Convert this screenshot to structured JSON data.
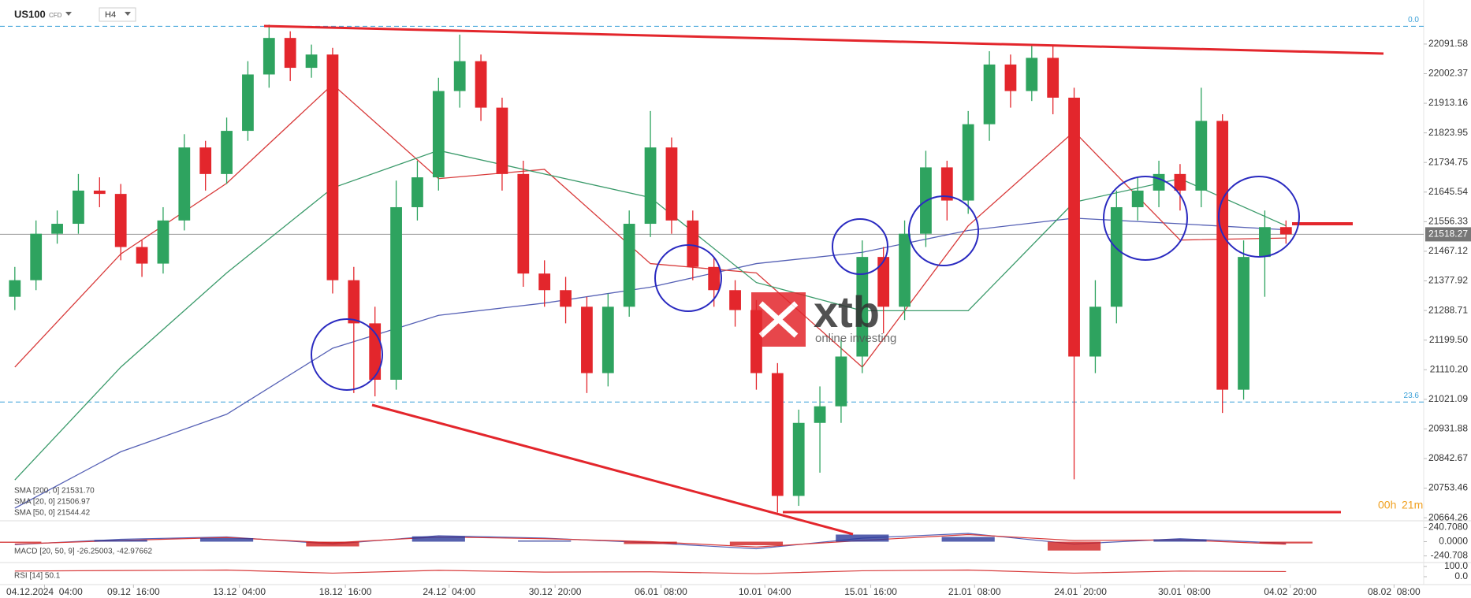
{
  "chart_data": {
    "type": "candlestick",
    "symbol": "US100",
    "instrument_type": "CFD",
    "timeframe": "H4",
    "up_color": "#2ea35f",
    "down_color": "#e3262c",
    "open": [
      21330,
      21380,
      21520,
      21550,
      21650,
      21640,
      21480,
      21430,
      21560,
      21780,
      21700,
      21830,
      22000,
      22110,
      22020,
      22060,
      21380,
      21250,
      21080,
      21600,
      21690,
      21950,
      22040,
      21900,
      21700,
      21400,
      21350,
      21300,
      21100,
      21300,
      21550,
      21780,
      21560,
      21420,
      21350,
      21290,
      21100,
      20730,
      20950,
      21000,
      21150,
      21450,
      21300,
      21520,
      21720,
      21620,
      21850,
      22030,
      21950,
      22050,
      21930,
      21150,
      21300,
      21600,
      21650,
      21700,
      21650,
      21860,
      21050,
      21450,
      21540
    ],
    "high": [
      21420,
      21560,
      21590,
      21700,
      21690,
      21670,
      21500,
      21600,
      21820,
      21800,
      21870,
      22040,
      22150,
      22130,
      22090,
      22080,
      21420,
      21300,
      21680,
      21740,
      21990,
      22120,
      22060,
      21930,
      21740,
      21440,
      21390,
      21330,
      21340,
      21590,
      21890,
      21810,
      21590,
      21450,
      21380,
      21320,
      21130,
      20990,
      21060,
      21200,
      21500,
      21480,
      21560,
      21770,
      21740,
      21890,
      22070,
      22060,
      22090,
      22090,
      21960,
      21380,
      21650,
      21690,
      21740,
      21730,
      21960,
      21880,
      21500,
      21590,
      21560
    ],
    "low": [
      21290,
      21350,
      21490,
      21520,
      21600,
      21440,
      21390,
      21400,
      21530,
      21650,
      21670,
      21800,
      21960,
      21980,
      21990,
      21340,
      21040,
      21030,
      21050,
      21560,
      21650,
      21900,
      21860,
      21650,
      21360,
      21300,
      21250,
      21040,
      21060,
      21270,
      21510,
      21520,
      21380,
      21300,
      21240,
      21050,
      20680,
      20700,
      20800,
      20950,
      21100,
      21220,
      21260,
      21480,
      21560,
      21580,
      21800,
      21900,
      21920,
      21880,
      20780,
      21100,
      21250,
      21560,
      21600,
      21590,
      21600,
      20980,
      21020,
      21330,
      21490
    ],
    "close": [
      21380,
      21520,
      21550,
      21650,
      21640,
      21480,
      21430,
      21560,
      21780,
      21700,
      21830,
      22000,
      22110,
      22020,
      22060,
      21380,
      21250,
      21080,
      21600,
      21690,
      21950,
      22040,
      21900,
      21700,
      21400,
      21350,
      21300,
      21100,
      21300,
      21550,
      21780,
      21560,
      21420,
      21350,
      21290,
      21100,
      20730,
      20950,
      21000,
      21150,
      21450,
      21300,
      21520,
      21720,
      21620,
      21850,
      22030,
      21950,
      22050,
      21930,
      21150,
      21300,
      21600,
      21650,
      21700,
      21650,
      21860,
      21050,
      21450,
      21540,
      21518
    ],
    "xlim": [
      -0.7,
      66.5
    ],
    "xticks": [
      {
        "value": 1.4,
        "label": "04.12.2024  04:00"
      },
      {
        "value": 5.6,
        "label": "09.12  16:00"
      },
      {
        "value": 10.6,
        "label": "13.12  04:00"
      },
      {
        "value": 15.6,
        "label": "18.12  16:00"
      },
      {
        "value": 20.5,
        "label": "24.12  04:00"
      },
      {
        "value": 25.5,
        "label": "30.12  20:00"
      },
      {
        "value": 30.5,
        "label": "06.01  08:00"
      },
      {
        "value": 35.4,
        "label": "10.01  04:00"
      },
      {
        "value": 40.4,
        "label": "15.01  16:00"
      },
      {
        "value": 45.3,
        "label": "21.01  08:00"
      },
      {
        "value": 50.3,
        "label": "24.01  20:00"
      },
      {
        "value": 55.2,
        "label": "30.01  08:00"
      },
      {
        "value": 60.2,
        "label": "04.02  20:00"
      },
      {
        "value": 65.1,
        "label": "08.02  08:00"
      }
    ],
    "ylim": [
      20655,
      22146
    ],
    "yticks": [
      22091.58,
      22002.37,
      21913.16,
      21823.95,
      21734.75,
      21645.54,
      21556.33,
      21467.12,
      21377.92,
      21288.71,
      {
        "value": 21199.5,
        "label": "21199.50"
      },
      {
        "value": 21110.2,
        "label": "21110.20"
      },
      21021.09,
      20931.88,
      20842.67,
      20753.46,
      20664.26
    ],
    "last_price": 21518.27,
    "fib_levels": [
      {
        "label": "0.0",
        "value": 22145
      },
      {
        "label": "23.6",
        "value": 21013
      }
    ],
    "countdown": [
      "00h",
      "21m"
    ],
    "overlays": [
      {
        "name": "SMA [200, 0] 21531.70",
        "color": "#5560b5",
        "x": [
          0,
          5,
          10,
          15,
          20,
          25,
          30,
          35,
          40,
          45,
          50,
          55,
          60
        ],
        "values": [
          20693,
          20863,
          20976,
          21175,
          21274,
          21311,
          21359,
          21430,
          21464,
          21530,
          21567,
          21550,
          21532
        ]
      },
      {
        "name": "SMA [20, 0] 21506.97",
        "color": "#d83a3a",
        "x": [
          0,
          5,
          10,
          15,
          20,
          25,
          30,
          35,
          40,
          45,
          50,
          55,
          60
        ],
        "values": [
          21118,
          21459,
          21672,
          21970,
          21686,
          21714,
          21430,
          21402,
          21118,
          21544,
          21828,
          21501,
          21507
        ]
      },
      {
        "name": "SMA [50, 0] 21544.42",
        "color": "#3a9a6a",
        "x": [
          0,
          5,
          10,
          15,
          20,
          25,
          30,
          35,
          40,
          45,
          50,
          55,
          60
        ],
        "values": [
          20778,
          21118,
          21402,
          21658,
          21771,
          21700,
          21629,
          21373,
          21288,
          21288,
          21615,
          21686,
          21544
        ]
      }
    ],
    "macd": {
      "name": "MACD [20, 50, 9] -26.25003, -42.97662",
      "ylim": [
        -353,
        353
      ],
      "yticks": [
        {
          "value": 240.708,
          "label": "240.7080"
        },
        {
          "value": 0,
          "label": "0.0000"
        },
        -240.708
      ],
      "x": [
        0,
        5,
        10,
        15,
        20,
        25,
        30,
        35,
        40,
        45,
        50,
        55,
        60
      ],
      "line": [
        -50,
        40,
        80,
        -40,
        100,
        60,
        -20,
        -120,
        60,
        140,
        -40,
        50,
        -26.25
      ],
      "signal": [
        -40,
        20,
        70,
        -20,
        80,
        50,
        0,
        -90,
        20,
        120,
        20,
        30,
        -42.98
      ],
      "histogram": [
        -20,
        30,
        60,
        -80,
        90,
        20,
        -40,
        -60,
        120,
        80,
        -150,
        40,
        -30
      ],
      "line_color": "#5560b5",
      "signal_color": "#d83a3a",
      "up_color": "#2c3a9a",
      "down_color": "#d02020"
    },
    "rsi": {
      "name": "RSI [14] 50.1",
      "ylim": [
        -77,
        138
      ],
      "yticks": [
        {
          "value": 100,
          "label": "100.0"
        },
        {
          "value": 0,
          "label": "0.0"
        }
      ],
      "x": [
        0,
        5,
        10,
        15,
        20,
        25,
        30,
        35,
        40,
        45,
        50,
        55,
        60
      ],
      "values": [
        55,
        60,
        65,
        35,
        62,
        45,
        48,
        30,
        58,
        65,
        35,
        55,
        50.1
      ],
      "color": "#d83a3a"
    },
    "watermark": {
      "brand": "xtb",
      "tagline": "online investing"
    }
  }
}
